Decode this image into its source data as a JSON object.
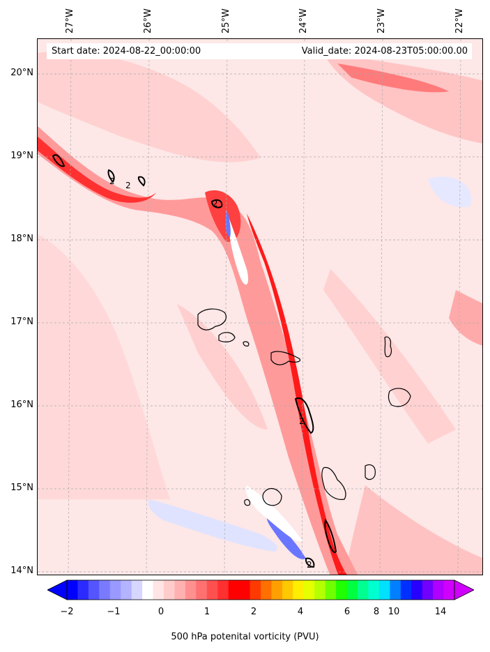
{
  "header": {
    "start_date": "Start date: 2024-08-22_00:00:00",
    "valid_date": "Valid_date: 2024-08-23T05:00:00.00"
  },
  "axes": {
    "longitude_labels": [
      "27°W",
      "26°W",
      "25°W",
      "24°W",
      "23°W",
      "22°W"
    ],
    "latitude_labels": [
      "20°N",
      "19°N",
      "18°N",
      "17°N",
      "16°N",
      "15°N",
      "14°N"
    ]
  },
  "colorbar": {
    "label": "500 hPa potenital vorticity (PVU)",
    "tick_labels": [
      "−2",
      "−1",
      "0",
      "1",
      "2",
      "4",
      "6",
      "8",
      "10",
      "14"
    ],
    "colors": [
      "#0000ff",
      "#2b2bff",
      "#5555ff",
      "#7a7aff",
      "#9999ff",
      "#b3b3ff",
      "#d6d6ff",
      "#ffffff",
      "#ffe5e5",
      "#ffcccc",
      "#ffb0b0",
      "#ff9090",
      "#ff7070",
      "#ff5050",
      "#ff3030",
      "#ff0000",
      "#ff0000",
      "#ff3a00",
      "#ff7000",
      "#ffa000",
      "#ffc800",
      "#ffee00",
      "#e6ff00",
      "#b4ff00",
      "#6eff00",
      "#20ff00",
      "#00ff40",
      "#00ff90",
      "#00ffd0",
      "#00e0ff",
      "#0080ff",
      "#0030ff",
      "#2800ff",
      "#7000ff",
      "#b000ff",
      "#d000ff"
    ],
    "extend": "both"
  },
  "map": {
    "contour_labels": [
      "2",
      "2",
      "2",
      "2",
      "2"
    ],
    "colors": {
      "background": "#fde7e7",
      "light_pink": "#ffd1d1",
      "pink": "#ffb2b2",
      "salmon": "#ff8080",
      "red": "#ff2a2a",
      "white": "#ffffff",
      "light_blue": "#dfe3ff",
      "blue": "#6a76ff",
      "coast": "#000000"
    }
  }
}
